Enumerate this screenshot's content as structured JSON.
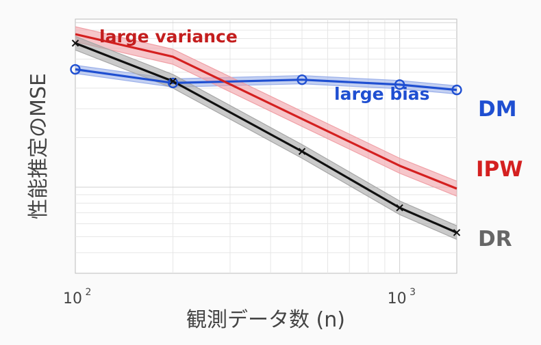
{
  "chart_data": {
    "type": "line",
    "xscale": "log",
    "yscale": "log",
    "xlim": [
      100,
      1500
    ],
    "grid": true,
    "xlabel": "観測データ数 (n)",
    "ylabel": "性能推定のMSE",
    "x_ticks": [
      {
        "value": 100,
        "base": "10",
        "exp": "2"
      },
      {
        "value": 1000,
        "base": "10",
        "exp": "3"
      }
    ],
    "x": [
      100,
      200,
      500,
      1000,
      1500
    ],
    "series": [
      {
        "name": "DM",
        "color": "#1f4fd1",
        "band_color": "#9bb0ea",
        "marker": "circle",
        "values": [
          0.52,
          0.43,
          0.45,
          0.42,
          0.39
        ]
      },
      {
        "name": "IPW",
        "color": "#d42020",
        "band_color": "#f0a0a6",
        "marker": "none",
        "values": [
          0.85,
          0.62,
          0.26,
          0.135,
          0.098
        ]
      },
      {
        "name": "DR",
        "color": "#111111",
        "band_color": "#a6a6a6",
        "marker": "x",
        "values": [
          0.75,
          0.44,
          0.165,
          0.075,
          0.053
        ]
      }
    ],
    "annotations": [
      {
        "text": "large variance",
        "color": "#c41e1e"
      },
      {
        "text": "large bias",
        "color": "#1f4fd1"
      }
    ]
  }
}
